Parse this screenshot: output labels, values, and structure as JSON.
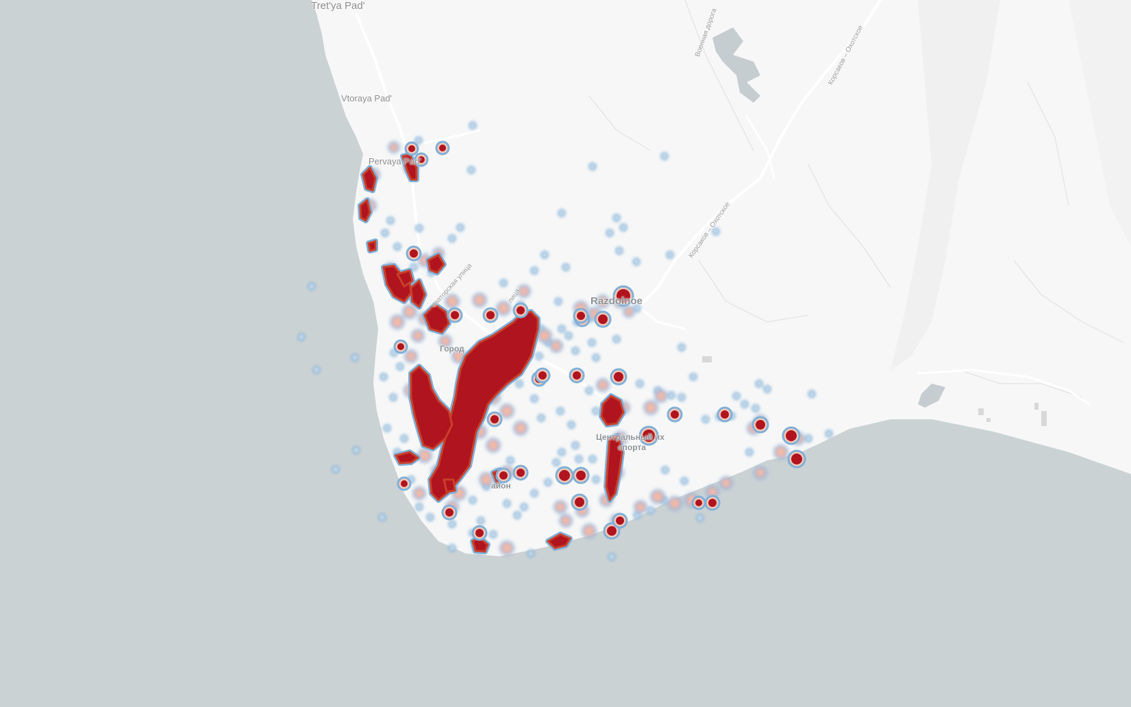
{
  "map": {
    "labels": {
      "tretya_pad": "Tret'ya Pad'",
      "vtoraya_pad": "Vtoraya Pad'",
      "pervaya_pad": "Pervaya Pad'",
      "razdolnoe": "Razdolnoe",
      "road_voennaya": "Военная дорога",
      "road_korsakov_okhotskoe_1": "Корсаков – Охотское",
      "road_korsakov_okhotskoe_2": "Корсаков – Охотское",
      "street_1": "оваторская улица",
      "street_2": "лица",
      "district_gorod": "Город",
      "district_center_1": "Центральный их",
      "district_center_2": "спорта",
      "district_rayon": "айон"
    },
    "colors": {
      "water": "#cbd2d4",
      "land": "#f7f7f7",
      "heat_low": "#7fb0d8",
      "heat_mid": "#f4b9a6",
      "heat_high": "#b0141e"
    }
  }
}
